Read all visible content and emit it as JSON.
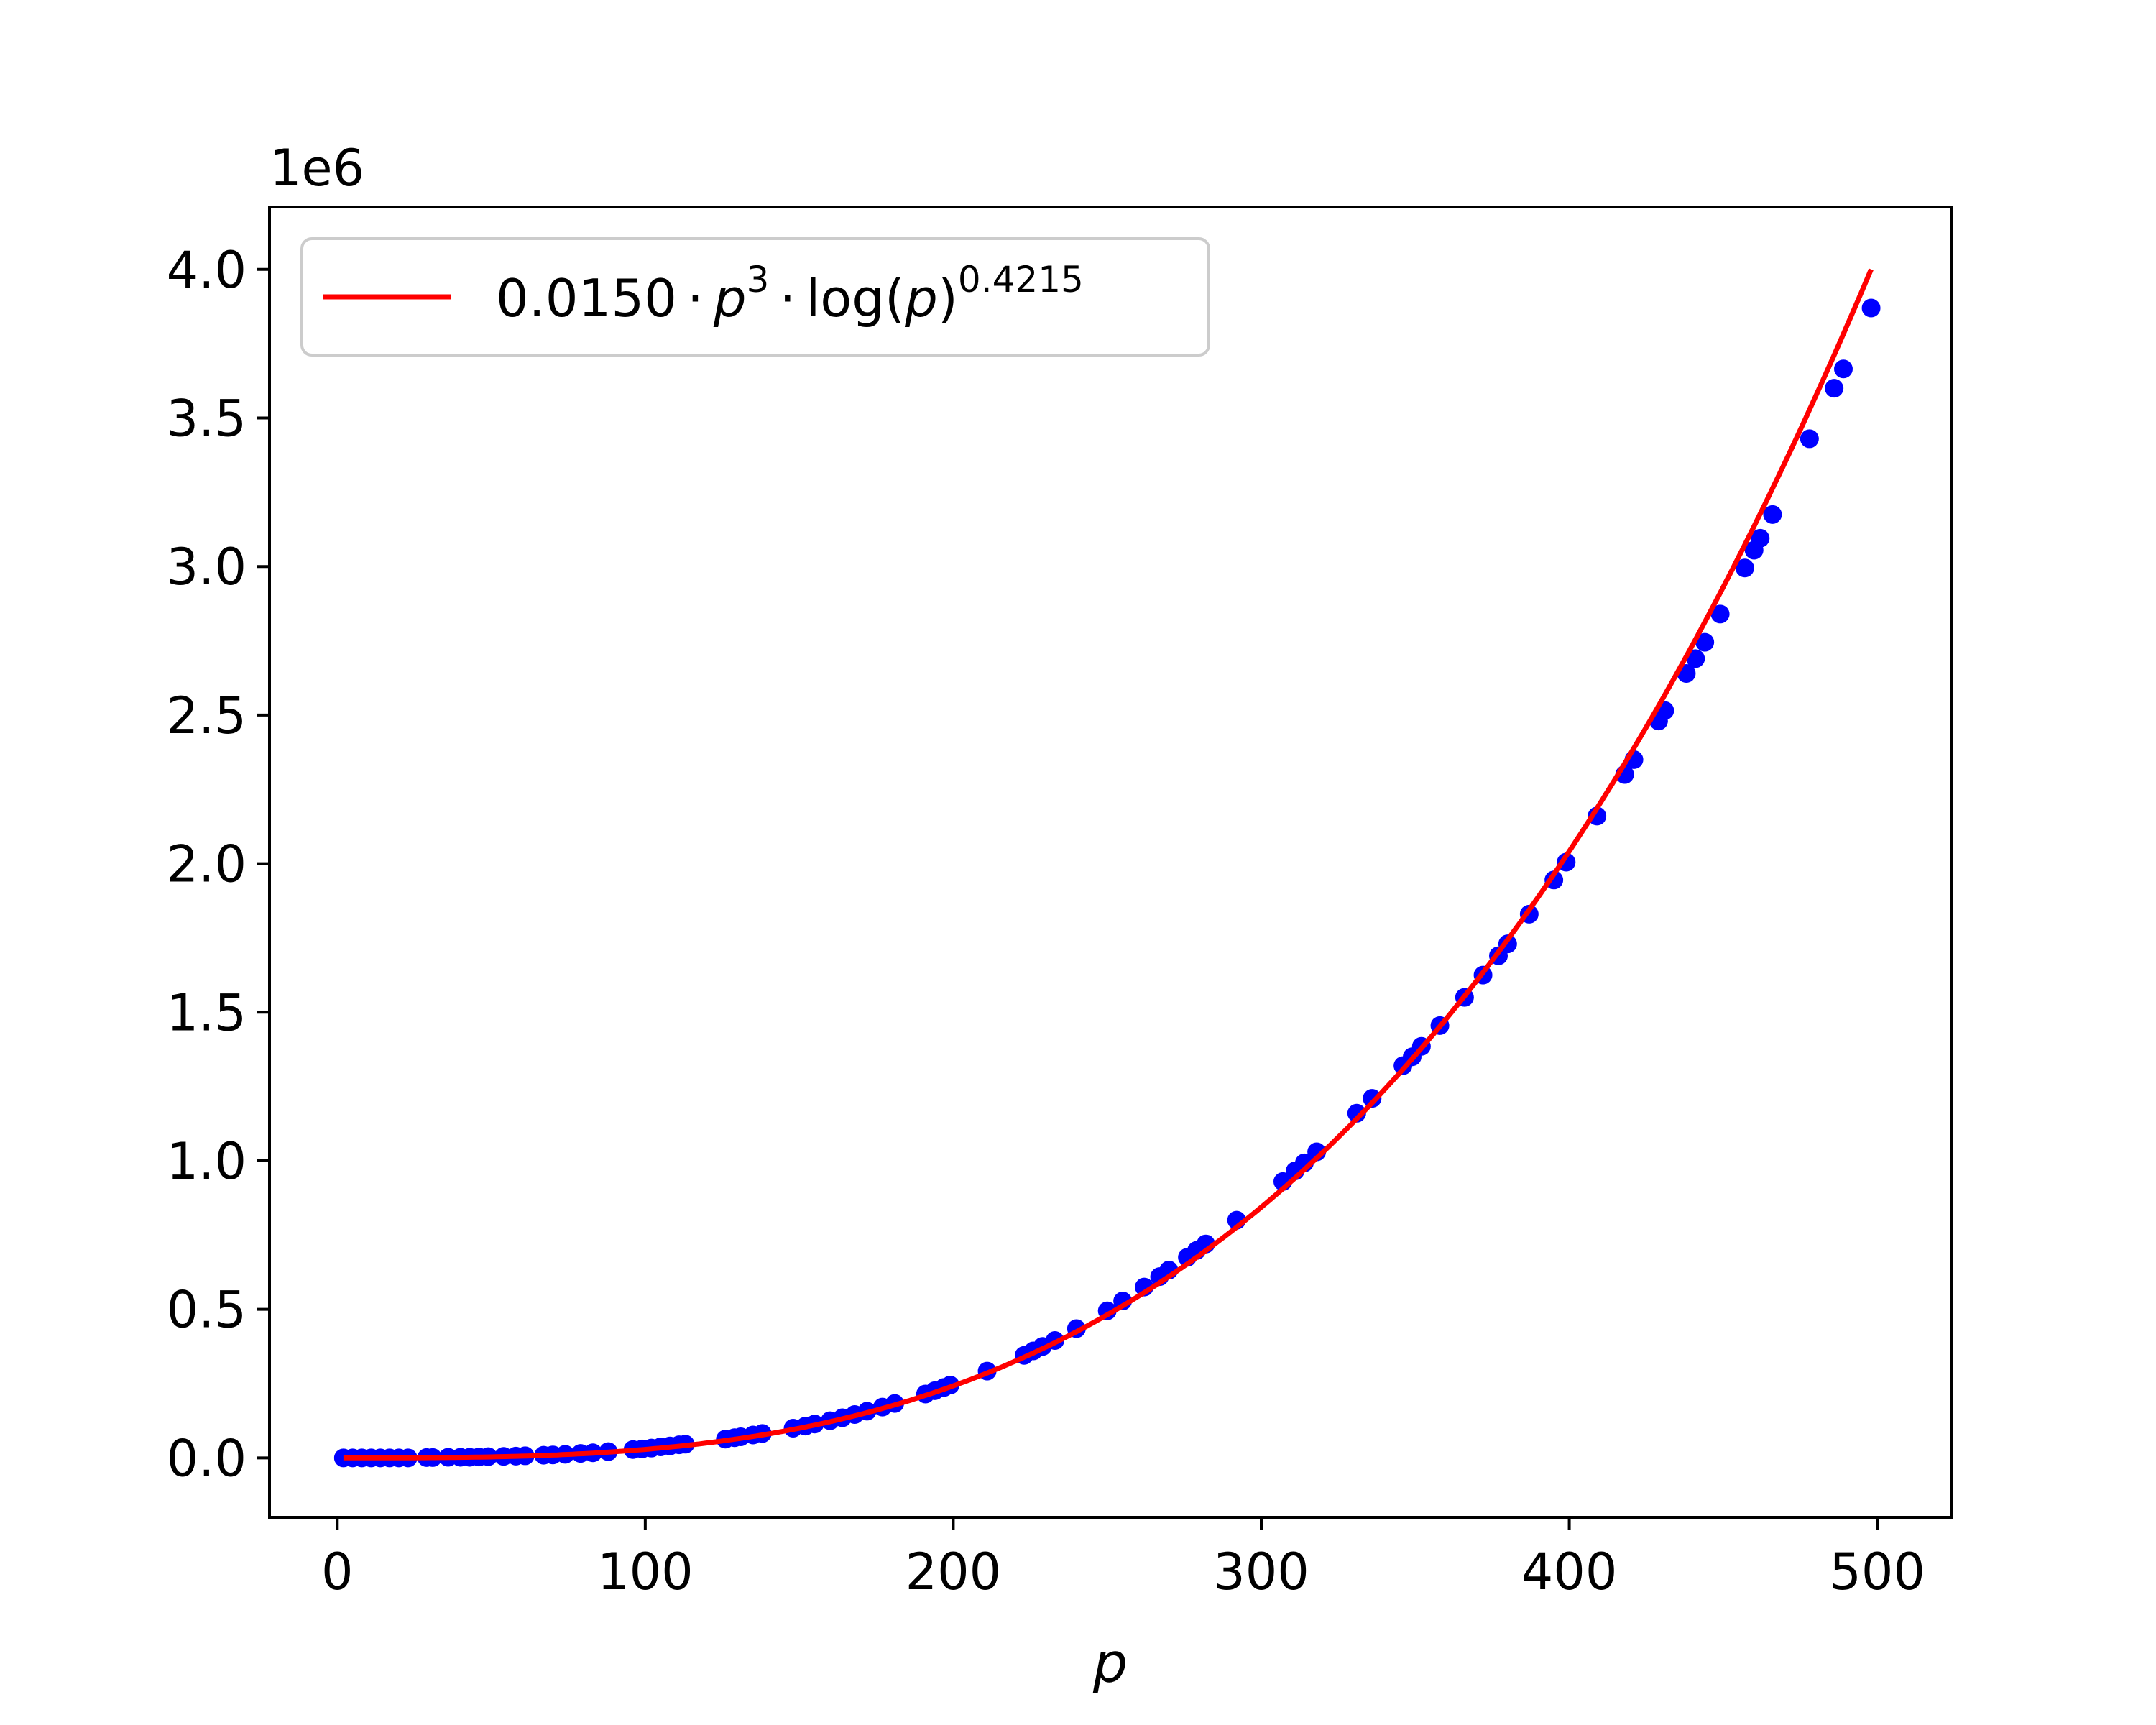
{
  "chart_data": {
    "type": "scatter",
    "title": "",
    "xlabel": "p",
    "ylabel": "",
    "y_offset_label": "1e6",
    "xlim": [
      -22,
      524
    ],
    "ylim": [
      -200000,
      4210000
    ],
    "x_ticks": [
      0,
      100,
      200,
      300,
      400,
      500
    ],
    "x_tick_labels": [
      "0",
      "100",
      "200",
      "300",
      "400",
      "500"
    ],
    "y_ticks": [
      0,
      500000,
      1000000,
      1500000,
      2000000,
      2500000,
      3000000,
      3500000,
      4000000
    ],
    "y_tick_labels": [
      "0.0",
      "0.5",
      "1.0",
      "1.5",
      "2.0",
      "2.5",
      "3.0",
      "3.5",
      "4.0"
    ],
    "grid": false,
    "legend_position": "top-left",
    "colors": {
      "points": "#0000ff",
      "fit": "#ff0000"
    },
    "series": [
      {
        "kind": "points",
        "x": [
          2,
          5,
          8,
          11,
          14,
          17,
          20,
          23,
          29,
          31,
          36,
          40,
          43,
          46,
          49,
          54,
          58,
          61,
          67,
          70,
          74,
          79,
          83,
          88,
          96,
          99,
          102,
          105,
          108,
          111,
          113,
          126,
          129,
          131,
          135,
          138,
          148,
          152,
          155,
          160,
          164,
          168,
          172,
          177,
          181,
          191,
          194,
          197,
          199,
          211,
          223,
          226,
          229,
          233,
          240,
          250,
          255,
          262,
          267,
          270,
          276,
          279,
          282,
          292,
          307,
          311,
          314,
          318,
          331,
          336,
          346,
          349,
          352,
          358,
          366,
          372,
          377,
          380,
          387,
          395,
          399,
          409,
          418,
          421,
          429,
          431,
          438,
          441,
          444,
          449,
          457,
          460,
          462,
          466,
          478,
          486,
          489,
          498
        ],
        "y": [
          0,
          0,
          0,
          0,
          0,
          0,
          0,
          0,
          1000,
          1000,
          2000,
          2000,
          2000,
          3000,
          4000,
          5000,
          6000,
          7000,
          9000,
          10000,
          12000,
          15000,
          17000,
          21000,
          28000,
          30000,
          33000,
          37000,
          40000,
          44000,
          46000,
          63000,
          68000,
          71000,
          77000,
          82000,
          100000,
          107000,
          114000,
          125000,
          135000,
          146000,
          157000,
          171000,
          183000,
          215000,
          226000,
          237000,
          245000,
          292000,
          345000,
          360000,
          375000,
          395000,
          435000,
          495000,
          528000,
          575000,
          610000,
          632000,
          675000,
          698000,
          720000,
          800000,
          930000,
          966000,
          993000,
          1030000,
          1160000,
          1210000,
          1320000,
          1350000,
          1385000,
          1455000,
          1550000,
          1625000,
          1690000,
          1730000,
          1830000,
          1945000,
          2005000,
          2160000,
          2300000,
          2350000,
          2480000,
          2515000,
          2640000,
          2690000,
          2745000,
          2840000,
          2995000,
          3055000,
          3095000,
          3175000,
          3430000,
          3600000,
          3665000,
          3870000
        ]
      },
      {
        "kind": "line",
        "name_parts": {
          "coef": "0.0150",
          "var": "p",
          "exp": "3",
          "log_text": "log(",
          "close": ")",
          "log_exp": "0.4215",
          "dot": "·"
        },
        "x_range": [
          2,
          498
        ],
        "model": {
          "coefficient": 0.015,
          "power": 3,
          "log_power": 0.4215
        }
      }
    ]
  }
}
